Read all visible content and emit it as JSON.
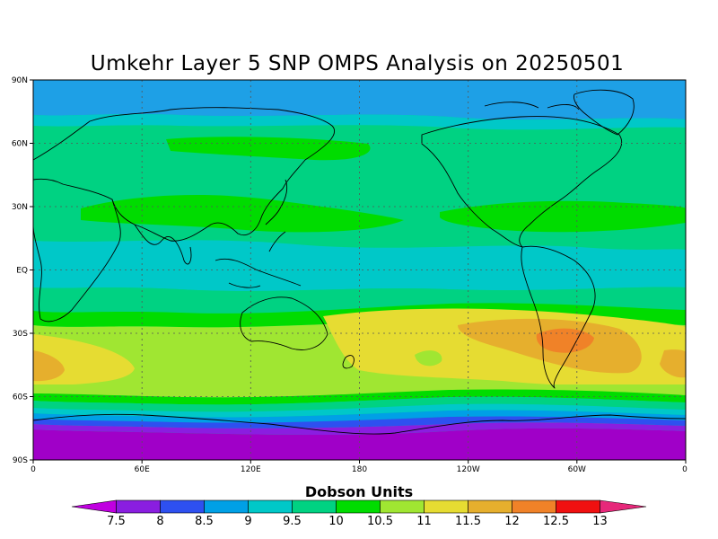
{
  "title": "Umkehr Layer 5 SNP OMPS Analysis on 20250501",
  "map": {
    "lat_ticks": [
      "90N",
      "60N",
      "30N",
      "EQ",
      "30S",
      "60S",
      "90S"
    ],
    "lon_ticks": [
      "0",
      "60E",
      "120E",
      "180",
      "120W",
      "60W",
      "0"
    ]
  },
  "colorbar": {
    "title": "Dobson Units",
    "labels": [
      "7.5",
      "8",
      "8.5",
      "9",
      "9.5",
      "10",
      "10.5",
      "11",
      "11.5",
      "12",
      "12.5",
      "13"
    ],
    "colors": [
      "#c000e0",
      "#8a1ee0",
      "#2e50f0",
      "#00a0e6",
      "#00c8c8",
      "#00d282",
      "#00dc00",
      "#a0e632",
      "#e6dc32",
      "#e6af2d",
      "#f08228",
      "#f01010",
      "#e6287a"
    ]
  },
  "colors": {
    "band_arctic": "#1ea0e6",
    "band_high": "#00d282",
    "band_mid": "#00dc00",
    "band_tropics": "#00c8c8",
    "band_south_mid": "#a0e632",
    "band_south": "#e6dc32",
    "max_region": "#e6af2d",
    "antarctic": "#a000c8"
  }
}
